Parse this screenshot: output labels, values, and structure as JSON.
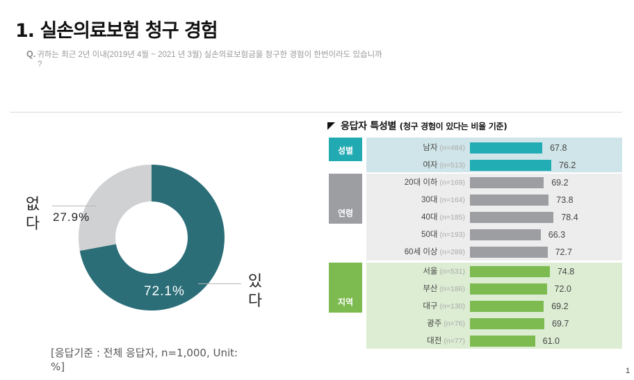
{
  "header": {
    "title": "1. 실손의료보험 청구 경험",
    "question_prefix": "Q.",
    "question_text": "귀하는 최근 2년 이내(2019년 4월 ~ 2021 년 3월) 실손의료보험금을  청구한 경험이 한번이라도 있습니까",
    "question_cont": "?"
  },
  "donut": {
    "yes_label_1": "있",
    "yes_label_2": "다",
    "no_label_1": "없",
    "no_label_2": "다",
    "yes_pct": "72.1%",
    "no_pct": "27.9%",
    "colors": {
      "yes": "#2B6E78",
      "no": "#D0D1D3"
    }
  },
  "source_note": "[응답기준 : 전체 응답자, n=1,000, Unit: %]",
  "breakdown": {
    "title": "응답자 특성별",
    "subtitle": "(청구 경험이 있다는 비율 기준)",
    "groups": [
      {
        "label": "성별",
        "tag_color": "#22AAB2",
        "panel_color": "#D0E5E9",
        "bar_color": "#22ADB5",
        "rows": [
          {
            "label": "남자",
            "n": "(n=484)",
            "value": 67.8,
            "display": "67.8"
          },
          {
            "label": "여자",
            "n": "(n=513)",
            "value": 76.2,
            "display": "76.2"
          }
        ]
      },
      {
        "label": "연령",
        "tag_color": "#9C9EA2",
        "panel_color": "#EDEDED",
        "bar_color": "#9C9EA2",
        "rows": [
          {
            "label": "20대 이하",
            "n": "(n=169)",
            "value": 69.2,
            "display": "69.2"
          },
          {
            "label": "30대",
            "n": "(n=164)",
            "value": 73.8,
            "display": "73.8"
          },
          {
            "label": "40대",
            "n": "(n=185)",
            "value": 78.4,
            "display": "78.4"
          },
          {
            "label": "50대",
            "n": "(n=193)",
            "value": 66.3,
            "display": "66.3"
          },
          {
            "label": "60세 이상",
            "n": "(n=289)",
            "value": 72.7,
            "display": "72.7"
          }
        ]
      },
      {
        "label": "지역",
        "tag_color": "#7DBB50",
        "panel_color": "#DCEDD3",
        "bar_color": "#7DBB50",
        "rows": [
          {
            "label": "서울",
            "n": "(n=531)",
            "value": 74.8,
            "display": "74.8"
          },
          {
            "label": "부산",
            "n": "(n=186)",
            "value": 72.0,
            "display": "72.0"
          },
          {
            "label": "대구",
            "n": "(n=130)",
            "value": 69.2,
            "display": "69.2"
          },
          {
            "label": "광주",
            "n": "(n=76)",
            "value": 69.7,
            "display": "69.7"
          },
          {
            "label": "대전",
            "n": "(n=77)",
            "value": 61.0,
            "display": "61.0"
          }
        ]
      }
    ]
  },
  "page_number": "1",
  "chart_data": [
    {
      "type": "pie",
      "title": "실손의료보험 청구 경험",
      "categories": [
        "있다",
        "없다"
      ],
      "values": [
        72.1,
        27.9
      ],
      "unit": "%",
      "donut": true,
      "colors": [
        "#2B6E78",
        "#D0D1D3"
      ],
      "note": "[응답기준 : 전체 응답자, n=1,000, Unit: %]"
    },
    {
      "type": "bar",
      "orientation": "horizontal",
      "title": "응답자 특성별 (청구 경험이 있다는 비율 기준)",
      "categories": [
        "남자 (n=484)",
        "여자 (n=513)",
        "20대 이하 (n=169)",
        "30대 (n=164)",
        "40대 (n=185)",
        "50대 (n=193)",
        "60세 이상 (n=289)",
        "서울 (n=531)",
        "부산 (n=186)",
        "대구 (n=130)",
        "광주 (n=76)",
        "대전 (n=77)"
      ],
      "groups": [
        "성별",
        "성별",
        "연령",
        "연령",
        "연령",
        "연령",
        "연령",
        "지역",
        "지역",
        "지역",
        "지역",
        "지역"
      ],
      "values": [
        67.8,
        76.2,
        69.2,
        73.8,
        78.4,
        66.3,
        72.7,
        74.8,
        72.0,
        69.2,
        69.7,
        61.0
      ],
      "unit": "%",
      "grid": false,
      "legend": null
    }
  ]
}
